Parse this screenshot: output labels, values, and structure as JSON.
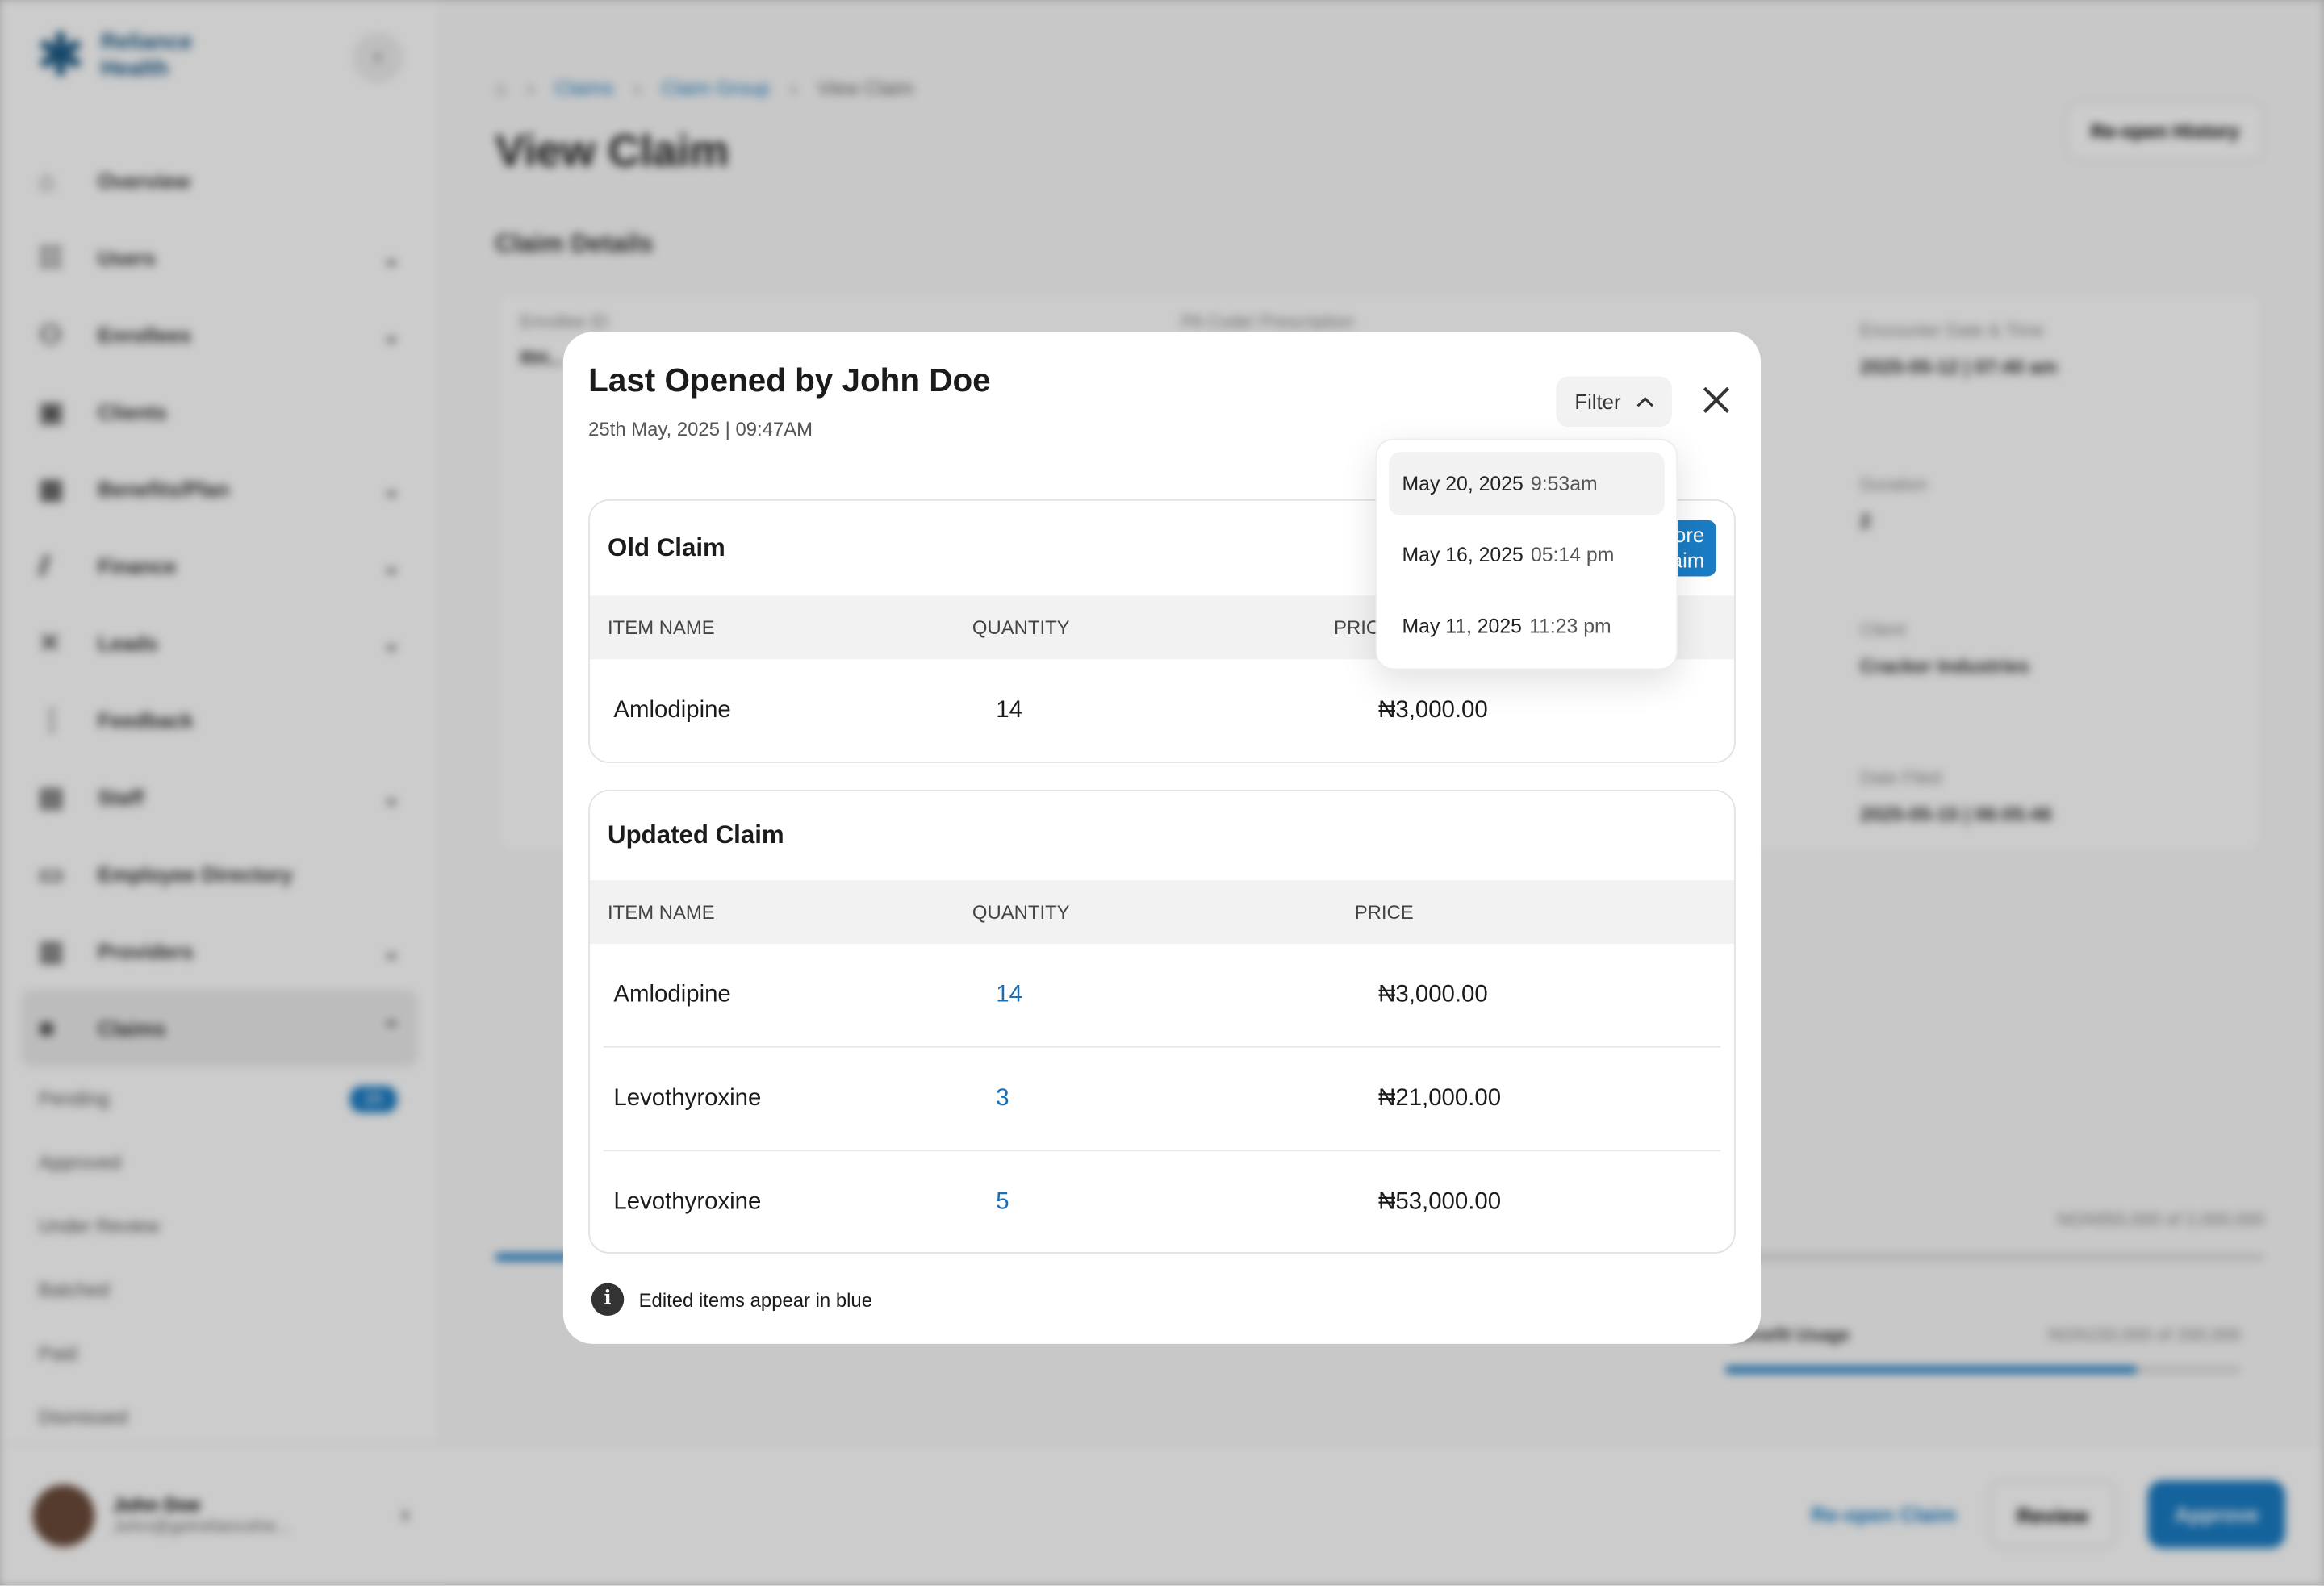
{
  "app": {
    "brand": "Reliance Health",
    "collapse_icon": "chevron-left-icon"
  },
  "sidebar": {
    "items": [
      {
        "label": "Overview",
        "icon": "home-icon",
        "chev": false
      },
      {
        "label": "Users",
        "icon": "users-icon",
        "chev": true
      },
      {
        "label": "Enrollees",
        "icon": "enrollees-icon",
        "chev": true
      },
      {
        "label": "Clients",
        "icon": "briefcase-icon",
        "chev": false
      },
      {
        "label": "Benefits/Plan",
        "icon": "benefits-icon",
        "chev": true
      },
      {
        "label": "Finance",
        "icon": "chart-icon",
        "chev": true
      },
      {
        "label": "Leads",
        "icon": "leads-icon",
        "chev": true
      },
      {
        "label": "Feedback",
        "icon": "feedback-icon",
        "chev": false
      },
      {
        "label": "Staff",
        "icon": "staff-icon",
        "chev": true
      },
      {
        "label": "Employee Directory",
        "icon": "folder-icon",
        "chev": false
      },
      {
        "label": "Providers",
        "icon": "building-icon",
        "chev": true
      },
      {
        "label": "Claims",
        "icon": "claims-icon",
        "chev": true,
        "active": true
      }
    ],
    "claims_sub": [
      {
        "label": "Pending",
        "badge": "20"
      },
      {
        "label": "Approved"
      },
      {
        "label": "Under Review"
      },
      {
        "label": "Batched"
      },
      {
        "label": "Paid"
      },
      {
        "label": "Dismissed"
      }
    ],
    "user": {
      "name": "John Doe",
      "email": "John@getreliancehe..."
    }
  },
  "page": {
    "breadcrumb": [
      "Claims",
      "Claim Group",
      "View Claim"
    ],
    "title": "View Claim",
    "reopen_history": "Re-open History",
    "section": "Claim Details",
    "fields": [
      {
        "label": "Enrollee ID",
        "value": "RH..."
      },
      {
        "label": "PA Code/ Prescription",
        "value": ""
      },
      {
        "label": "Encounter Date & Time",
        "value": "2025-05-12 | 07:40 am"
      },
      {
        "label": "Duration",
        "value": "2"
      },
      {
        "label": "Client",
        "value": "Cracker Industries"
      },
      {
        "label": "Date Filed",
        "value": "2025-05-15 | 06:05:46"
      }
    ],
    "global_usage": "NGN950,000 of 2,000,000",
    "benefit_usage_label": "Benefit Usage",
    "benefit_usage": "NGN150,000 of 200,000",
    "buttons": {
      "reopen": "Re-open Claim",
      "review": "Review",
      "approve": "Approve"
    }
  },
  "modal": {
    "title": "Last Opened by John Doe",
    "subtitle": "25th May, 2025 | 09:47AM",
    "filter_label": "Filter",
    "filter_options": [
      {
        "date": "May 20, 2025",
        "time": "9:53am",
        "selected": true
      },
      {
        "date": "May 16, 2025",
        "time": "05:14 pm"
      },
      {
        "date": "May 11, 2025",
        "time": "11:23 pm"
      }
    ],
    "old_claim": {
      "title": "Old Claim",
      "action_label": "Restore Claim",
      "columns": [
        "ITEM NAME",
        "QUANTITY",
        "PRICE"
      ],
      "rows": [
        {
          "name": "Amlodipine",
          "qty": "14",
          "price": "₦3,000.00"
        }
      ]
    },
    "updated_claim": {
      "title": "Updated Claim",
      "columns": [
        "ITEM NAME",
        "QUANTITY",
        "PRICE"
      ],
      "rows": [
        {
          "name": "Amlodipine",
          "qty": "14",
          "price": "₦3,000.00",
          "edited": true
        },
        {
          "name": "Levothyroxine",
          "qty": "3",
          "price": "₦21,000.00",
          "edited": true
        },
        {
          "name": "Levothyroxine",
          "qty": "5",
          "price": "₦53,000.00",
          "edited": true
        }
      ]
    },
    "note": "Edited items appear in blue",
    "edited_color": "#1a6eb3"
  }
}
